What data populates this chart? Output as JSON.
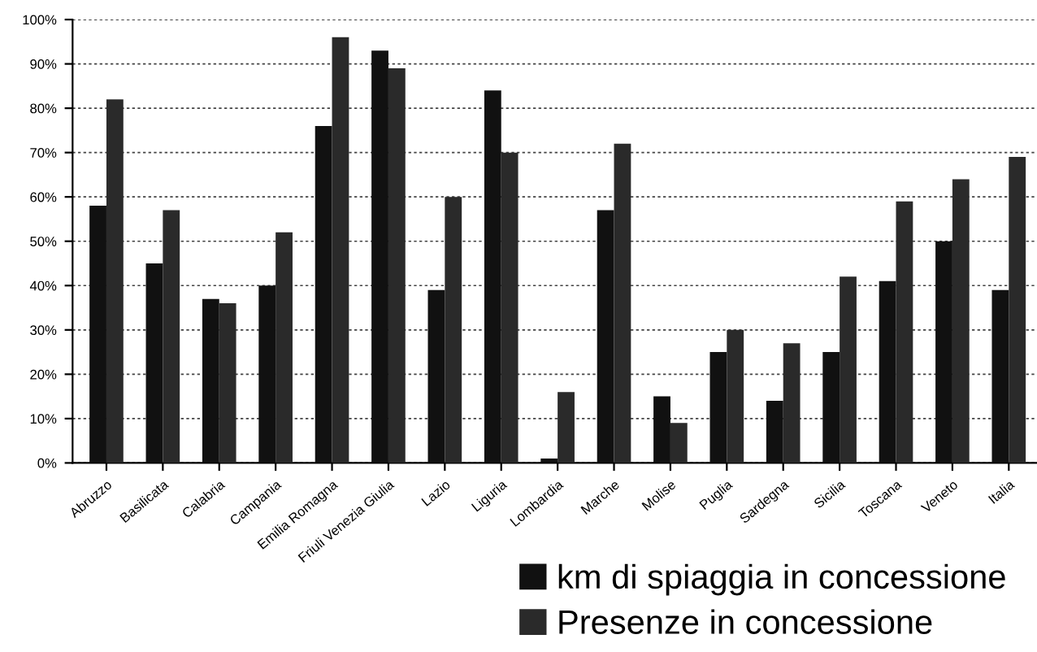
{
  "chart_data": {
    "type": "bar",
    "categories": [
      "Abruzzo",
      "Basilicata",
      "Calabria",
      "Campania",
      "Emilia Romagna",
      "Friuli Venezia Giulia",
      "Lazio",
      "Liguria",
      "Lombardia",
      "Marche",
      "Molise",
      "Puglia",
      "Sardegna",
      "Sicilia",
      "Toscana",
      "Veneto",
      "Italia"
    ],
    "series": [
      {
        "name": "km di spiaggia in concessione",
        "color": "#111111",
        "values": [
          58,
          45,
          37,
          40,
          76,
          93,
          39,
          84,
          1,
          57,
          15,
          25,
          14,
          25,
          41,
          50,
          39
        ]
      },
      {
        "name": "Presenze in concessione",
        "color": "#2a2a2a",
        "values": [
          82,
          57,
          36,
          52,
          96,
          89,
          60,
          70,
          16,
          72,
          9,
          30,
          27,
          42,
          59,
          64,
          69
        ]
      }
    ],
    "ylim": [
      0,
      100
    ],
    "yticks": [
      {
        "value": 0,
        "label": "0%"
      },
      {
        "value": 10,
        "label": "10%"
      },
      {
        "value": 20,
        "label": "20%"
      },
      {
        "value": 30,
        "label": "30%"
      },
      {
        "value": 40,
        "label": "40%"
      },
      {
        "value": 50,
        "label": "50%"
      },
      {
        "value": 60,
        "label": "60%"
      },
      {
        "value": 70,
        "label": "70%"
      },
      {
        "value": 80,
        "label": "80%"
      },
      {
        "value": 90,
        "label": "90%"
      },
      {
        "value": 100,
        "label": "100%"
      }
    ],
    "grid": "y",
    "legend": "bottom right"
  }
}
